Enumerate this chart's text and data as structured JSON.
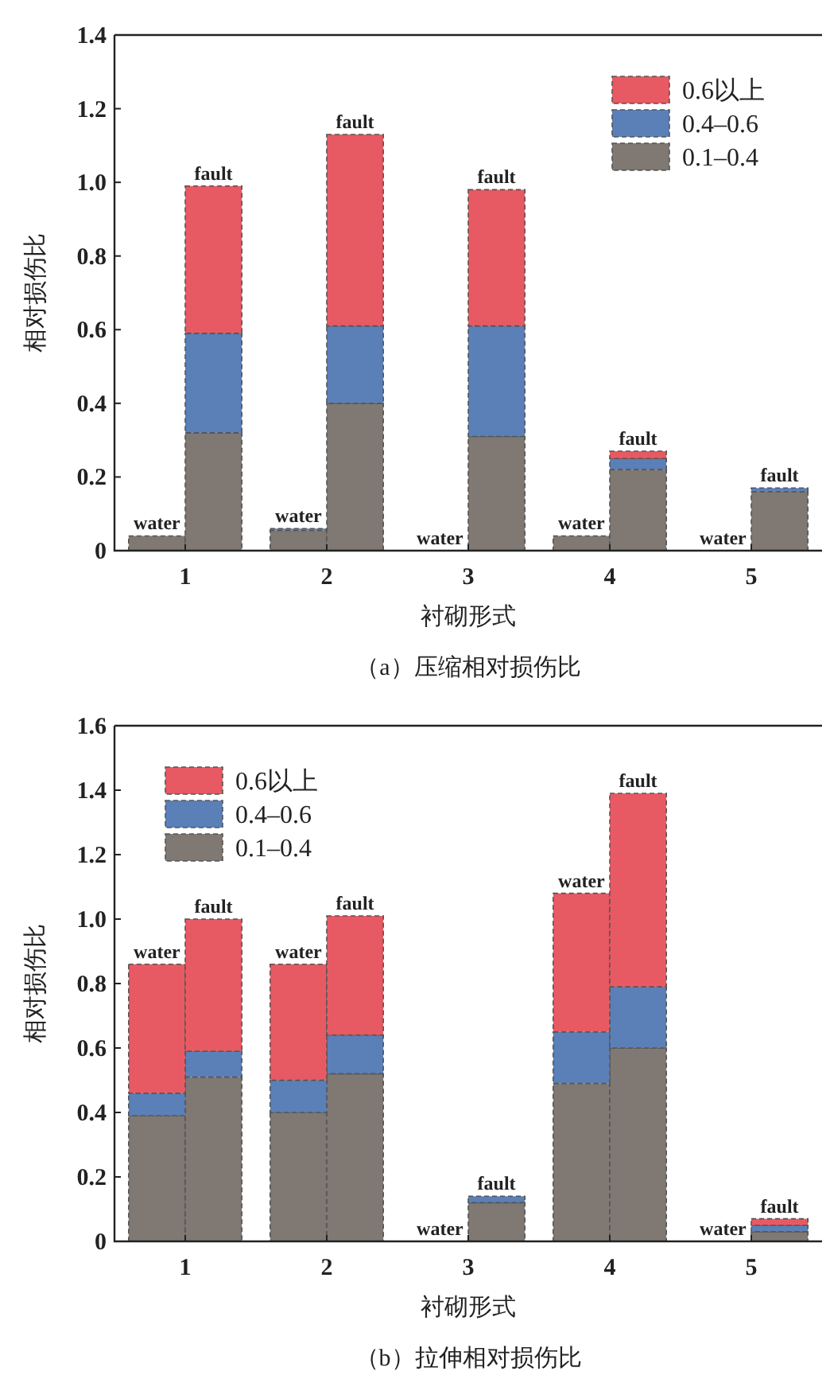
{
  "chart_data": [
    {
      "type": "bar",
      "stacked": true,
      "title": "（a）压缩相对损伤比",
      "xlabel": "衬砌形式",
      "ylabel": "相对损伤比",
      "x": [
        0.8,
        1.2,
        1.8,
        2.2,
        2.8,
        3.2,
        3.8,
        4.2,
        4.8,
        5.2
      ],
      "xlim": [
        0.5,
        5.5
      ],
      "xticks": [
        1,
        2,
        3,
        4,
        5
      ],
      "ylim": [
        0,
        1.4
      ],
      "yticks": [
        0,
        0.2,
        0.4,
        0.6,
        0.8,
        {
          "value": 1,
          "label": "1.0"
        },
        1.2,
        1.4
      ],
      "legend": "top right",
      "grid": false,
      "line_style": "dashed",
      "series": [
        {
          "name": "0.1–0.4",
          "color": "#7f7873",
          "values": [
            0.04,
            0.32,
            0.055,
            0.4,
            0,
            0.31,
            0.04,
            0.22,
            0,
            0.16
          ]
        },
        {
          "name": "0.4–0.6",
          "color": "#5b80b8",
          "values": [
            0,
            0.27,
            0.005,
            0.21,
            0,
            0.3,
            0,
            0.03,
            0,
            0.01
          ]
        },
        {
          "name": "0.6以上",
          "color": "#e85a63",
          "values": [
            0,
            0.4,
            0,
            0.52,
            0,
            0.37,
            0,
            0.02,
            0,
            0
          ]
        }
      ],
      "annotations": [
        {
          "text": "water",
          "x": 0.8,
          "y": 0.04
        },
        {
          "text": "fault",
          "x": 1.2,
          "y": 0.99
        },
        {
          "text": "water",
          "x": 1.8,
          "y": 0.06
        },
        {
          "text": "fault",
          "x": 2.2,
          "y": 1.13
        },
        {
          "text": "water",
          "x": 2.8,
          "y": 0
        },
        {
          "text": "fault",
          "x": 3.2,
          "y": 0.98
        },
        {
          "text": "water",
          "x": 3.8,
          "y": 0.04
        },
        {
          "text": "fault",
          "x": 4.2,
          "y": 0.27
        },
        {
          "text": "water",
          "x": 4.8,
          "y": 0
        },
        {
          "text": "fault",
          "x": 5.2,
          "y": 0.17
        }
      ]
    },
    {
      "type": "bar",
      "stacked": true,
      "title": "（b）拉伸相对损伤比",
      "xlabel": "衬砌形式",
      "ylabel": "相对损伤比",
      "x": [
        0.8,
        1.2,
        1.8,
        2.2,
        2.8,
        3.2,
        3.8,
        4.2,
        4.8,
        5.2
      ],
      "xlim": [
        0.5,
        5.5
      ],
      "xticks": [
        1,
        2,
        3,
        4,
        5
      ],
      "ylim": [
        0,
        1.6
      ],
      "yticks": [
        0,
        0.2,
        0.4,
        0.6,
        0.8,
        {
          "value": 1,
          "label": "1.0"
        },
        1.2,
        1.4,
        1.6
      ],
      "legend": "top left",
      "grid": false,
      "line_style": "dashed",
      "series": [
        {
          "name": "0.1–0.4",
          "color": "#7f7873",
          "values": [
            0.39,
            0.51,
            0.4,
            0.52,
            0,
            0.12,
            0.49,
            0.6,
            0,
            0.03
          ]
        },
        {
          "name": "0.4–0.6",
          "color": "#5b80b8",
          "values": [
            0.07,
            0.08,
            0.1,
            0.12,
            0,
            0.02,
            0.16,
            0.19,
            0,
            0.02
          ]
        },
        {
          "name": "0.6以上",
          "color": "#e85a63",
          "values": [
            0.4,
            0.41,
            0.36,
            0.37,
            0,
            0,
            0.43,
            0.6,
            0,
            0.02
          ]
        }
      ],
      "annotations": [
        {
          "text": "water",
          "x": 0.8,
          "y": 0.86
        },
        {
          "text": "fault",
          "x": 1.2,
          "y": 1.0
        },
        {
          "text": "water",
          "x": 1.8,
          "y": 0.86
        },
        {
          "text": "fault",
          "x": 2.2,
          "y": 1.01
        },
        {
          "text": "water",
          "x": 2.8,
          "y": 0
        },
        {
          "text": "fault",
          "x": 3.2,
          "y": 0.14
        },
        {
          "text": "water",
          "x": 3.8,
          "y": 1.08
        },
        {
          "text": "fault",
          "x": 4.2,
          "y": 1.39
        },
        {
          "text": "water",
          "x": 4.8,
          "y": 0
        },
        {
          "text": "fault",
          "x": 5.2,
          "y": 0.07
        }
      ]
    }
  ]
}
